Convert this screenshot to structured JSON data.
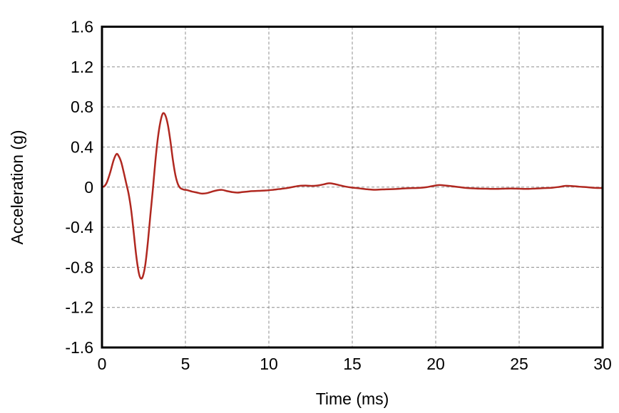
{
  "chart_data": {
    "type": "line",
    "title": "",
    "xlabel": "Time (ms)",
    "ylabel": "Acceleration (g)",
    "xlim": [
      0,
      30
    ],
    "ylim": [
      -1.6,
      1.6
    ],
    "x_ticks": [
      {
        "value": 0,
        "label": "0"
      },
      {
        "value": 5,
        "label": "5"
      },
      {
        "value": 10,
        "label": "10"
      },
      {
        "value": 15,
        "label": "15"
      },
      {
        "value": 20,
        "label": "20"
      },
      {
        "value": 25,
        "label": "25"
      },
      {
        "value": 30,
        "label": "30"
      }
    ],
    "y_ticks": [
      {
        "value": 1.6,
        "label": "1.6"
      },
      {
        "value": 1.2,
        "label": "1.2"
      },
      {
        "value": 0.8,
        "label": "0.8"
      },
      {
        "value": 0.4,
        "label": "0.4"
      },
      {
        "value": 0,
        "label": "0"
      },
      {
        "value": -0.4,
        "label": "-0.4"
      },
      {
        "value": -0.8,
        "label": "-0.8"
      },
      {
        "value": -1.2,
        "label": "-1.2"
      },
      {
        "value": -1.6,
        "label": "-1.6"
      }
    ],
    "grid": true,
    "legend": false,
    "colors": {
      "line": "#b02820",
      "grid": "#8c8c8c",
      "frame": "#000000"
    },
    "series": [
      {
        "name": "acceleration",
        "points": [
          [
            0,
            0
          ],
          [
            0.15,
            0.01
          ],
          [
            0.3,
            0.05
          ],
          [
            0.5,
            0.15
          ],
          [
            0.7,
            0.27
          ],
          [
            0.87,
            0.33
          ],
          [
            1.0,
            0.31
          ],
          [
            1.15,
            0.25
          ],
          [
            1.3,
            0.15
          ],
          [
            1.45,
            0.04
          ],
          [
            1.6,
            -0.07
          ],
          [
            1.75,
            -0.23
          ],
          [
            1.9,
            -0.45
          ],
          [
            2.05,
            -0.68
          ],
          [
            2.2,
            -0.85
          ],
          [
            2.32,
            -0.91
          ],
          [
            2.45,
            -0.89
          ],
          [
            2.6,
            -0.77
          ],
          [
            2.75,
            -0.55
          ],
          [
            2.9,
            -0.28
          ],
          [
            3.05,
            -0.02
          ],
          [
            3.2,
            0.26
          ],
          [
            3.35,
            0.49
          ],
          [
            3.5,
            0.65
          ],
          [
            3.65,
            0.735
          ],
          [
            3.8,
            0.715
          ],
          [
            3.95,
            0.62
          ],
          [
            4.1,
            0.46
          ],
          [
            4.25,
            0.27
          ],
          [
            4.4,
            0.12
          ],
          [
            4.55,
            0.03
          ],
          [
            4.7,
            -0.01
          ],
          [
            4.9,
            -0.025
          ],
          [
            5.1,
            -0.03
          ],
          [
            5.4,
            -0.045
          ],
          [
            5.7,
            -0.055
          ],
          [
            6.0,
            -0.065
          ],
          [
            6.3,
            -0.06
          ],
          [
            6.6,
            -0.045
          ],
          [
            6.9,
            -0.032
          ],
          [
            7.2,
            -0.028
          ],
          [
            7.5,
            -0.04
          ],
          [
            7.8,
            -0.05
          ],
          [
            8.1,
            -0.055
          ],
          [
            8.4,
            -0.05
          ],
          [
            8.7,
            -0.045
          ],
          [
            9.0,
            -0.04
          ],
          [
            9.4,
            -0.037
          ],
          [
            9.8,
            -0.034
          ],
          [
            10.2,
            -0.028
          ],
          [
            10.6,
            -0.02
          ],
          [
            11.0,
            -0.012
          ],
          [
            11.4,
            0
          ],
          [
            11.8,
            0.012
          ],
          [
            12.2,
            0.015
          ],
          [
            12.6,
            0.012
          ],
          [
            13.0,
            0.018
          ],
          [
            13.3,
            0.028
          ],
          [
            13.6,
            0.038
          ],
          [
            13.9,
            0.032
          ],
          [
            14.2,
            0.02
          ],
          [
            14.6,
            0.005
          ],
          [
            15.0,
            -0.005
          ],
          [
            15.4,
            -0.012
          ],
          [
            15.8,
            -0.02
          ],
          [
            16.2,
            -0.026
          ],
          [
            16.6,
            -0.025
          ],
          [
            17.0,
            -0.022
          ],
          [
            17.4,
            -0.02
          ],
          [
            17.8,
            -0.017
          ],
          [
            18.2,
            -0.012
          ],
          [
            18.6,
            -0.01
          ],
          [
            19.0,
            -0.008
          ],
          [
            19.4,
            -0.002
          ],
          [
            19.8,
            0.01
          ],
          [
            20.2,
            0.02
          ],
          [
            20.6,
            0.015
          ],
          [
            21.0,
            0.008
          ],
          [
            21.4,
            0
          ],
          [
            21.8,
            -0.008
          ],
          [
            22.2,
            -0.012
          ],
          [
            22.6,
            -0.015
          ],
          [
            23.0,
            -0.016
          ],
          [
            23.5,
            -0.018
          ],
          [
            24.0,
            -0.016
          ],
          [
            24.5,
            -0.014
          ],
          [
            25.0,
            -0.016
          ],
          [
            25.5,
            -0.018
          ],
          [
            26.0,
            -0.014
          ],
          [
            26.5,
            -0.01
          ],
          [
            27.0,
            -0.006
          ],
          [
            27.4,
            0.002
          ],
          [
            27.8,
            0.012
          ],
          [
            28.2,
            0.01
          ],
          [
            28.6,
            0.004
          ],
          [
            29.0,
            0
          ],
          [
            29.4,
            -0.006
          ],
          [
            30,
            -0.01
          ]
        ]
      }
    ]
  }
}
